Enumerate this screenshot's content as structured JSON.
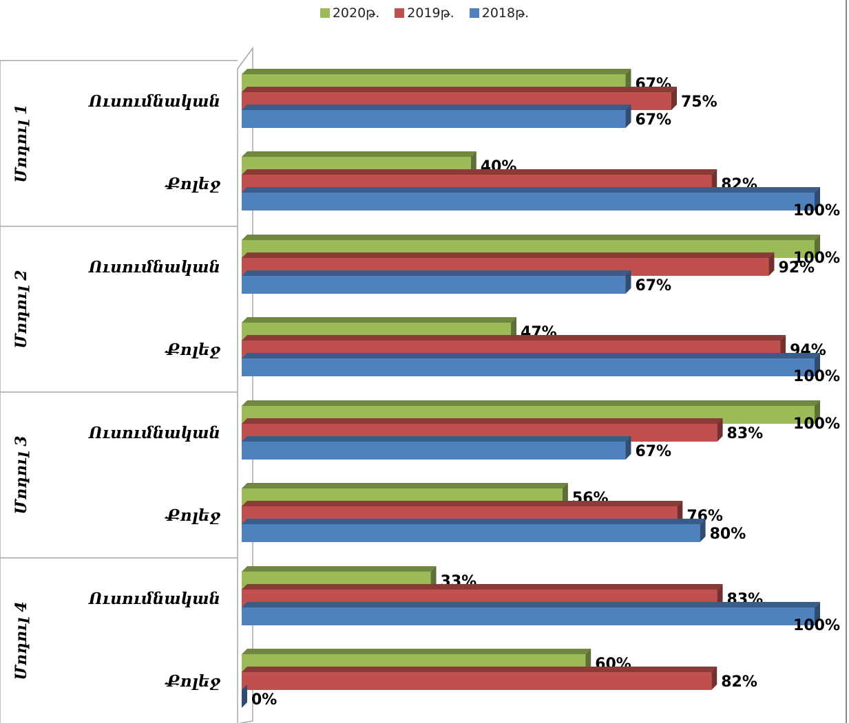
{
  "chart_data": {
    "type": "bar",
    "orientation": "horizontal",
    "three_d": true,
    "xlim": [
      0,
      100
    ],
    "unit": "%",
    "legend": {
      "placement": "top",
      "entries": [
        "2020թ.",
        "2019թ.",
        "2018թ."
      ]
    },
    "series": [
      {
        "name": "2020թ.",
        "color": "#9bbb59"
      },
      {
        "name": "2019թ.",
        "color": "#c0504d"
      },
      {
        "name": "2018թ.",
        "color": "#4f81bd"
      }
    ],
    "groups": [
      {
        "label": "Մոդուլ 1",
        "categories": [
          {
            "label": "Ուսումնական",
            "values": {
              "2020թ.": 67,
              "2019թ.": 75,
              "2018թ.": 67
            }
          },
          {
            "label": "Քոլեջ",
            "values": {
              "2020թ.": 40,
              "2019թ.": 82,
              "2018թ.": 100
            }
          }
        ]
      },
      {
        "label": "Մոդուլ 2",
        "categories": [
          {
            "label": "Ուսումնական",
            "values": {
              "2020թ.": 100,
              "2019թ.": 92,
              "2018թ.": 67
            }
          },
          {
            "label": "Քոլեջ",
            "values": {
              "2020թ.": 47,
              "2019թ.": 94,
              "2018թ.": 100
            }
          }
        ]
      },
      {
        "label": "Մոդուլ 3",
        "categories": [
          {
            "label": "Ուսումնական",
            "values": {
              "2020թ.": 100,
              "2019թ.": 83,
              "2018թ.": 67
            }
          },
          {
            "label": "Քոլեջ",
            "values": {
              "2020թ.": 56,
              "2019թ.": 76,
              "2018թ.": 80
            }
          }
        ]
      },
      {
        "label": "Մոդուլ 4",
        "categories": [
          {
            "label": "Ուսումնական",
            "values": {
              "2020թ.": 33,
              "2019թ.": 83,
              "2018թ.": 100
            }
          },
          {
            "label": "Քոլեջ",
            "values": {
              "2020թ.": 60,
              "2019թ.": 82,
              "2018թ.": 0
            }
          }
        ]
      }
    ]
  }
}
